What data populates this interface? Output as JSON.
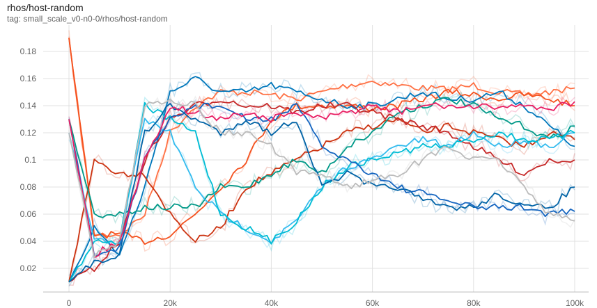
{
  "header": {
    "title": "rhos/host-random",
    "tag": "tag: small_scale_v0-n0-0/rhos/host-random"
  },
  "chart_data": {
    "type": "line",
    "title": "rhos/host-random",
    "xlabel": "",
    "ylabel": "",
    "xlim": [
      0,
      104000
    ],
    "ylim": [
      0,
      0.19
    ],
    "x_ticks": [
      0,
      20000,
      40000,
      60000,
      80000,
      100000
    ],
    "x_tick_labels": [
      "0",
      "20k",
      "40k",
      "60k",
      "80k",
      "100k"
    ],
    "y_ticks": [
      0.02,
      0.04,
      0.06,
      0.08,
      0.1,
      0.12,
      0.14,
      0.16,
      0.18
    ],
    "y_tick_labels": [
      "0.02",
      "0.04",
      "0.06",
      "0.08",
      "0.1",
      "0.12",
      "0.14",
      "0.16",
      "0.18"
    ],
    "grid": true,
    "legend": "none",
    "raw_series_opacity": 0.22,
    "x": [
      0,
      5000,
      10000,
      15000,
      20000,
      25000,
      30000,
      35000,
      40000,
      45000,
      50000,
      55000,
      60000,
      65000,
      70000,
      75000,
      80000,
      85000,
      90000,
      95000,
      100000
    ],
    "series": [
      {
        "color": "#ff7043",
        "values": [
          0.19,
          0.045,
          0.045,
          0.06,
          0.12,
          0.14,
          0.15,
          0.15,
          0.148,
          0.145,
          0.15,
          0.155,
          0.158,
          0.155,
          0.153,
          0.152,
          0.155,
          0.15,
          0.148,
          0.15,
          0.153
        ]
      },
      {
        "color": "#f4511e",
        "values": [
          0.19,
          0.045,
          0.045,
          0.04,
          0.045,
          0.06,
          0.08,
          0.1,
          0.13,
          0.14,
          0.14,
          0.14,
          0.138,
          0.14,
          0.145,
          0.15,
          0.148,
          0.145,
          0.148,
          0.145,
          0.14
        ]
      },
      {
        "color": "#0077bb",
        "values": [
          0.01,
          0.05,
          0.03,
          0.08,
          0.15,
          0.16,
          0.15,
          0.15,
          0.155,
          0.15,
          0.145,
          0.14,
          0.14,
          0.145,
          0.15,
          0.145,
          0.145,
          0.15,
          0.14,
          0.125,
          0.11
        ]
      },
      {
        "color": "#cc3311",
        "values": [
          0.01,
          0.1,
          0.09,
          0.09,
          0.06,
          0.04,
          0.05,
          0.08,
          0.09,
          0.1,
          0.11,
          0.12,
          0.125,
          0.13,
          0.12,
          0.125,
          0.12,
          0.115,
          0.11,
          0.12,
          0.115
        ]
      },
      {
        "color": "#c62828",
        "values": [
          0.01,
          0.02,
          0.04,
          0.1,
          0.13,
          0.14,
          0.145,
          0.14,
          0.14,
          0.135,
          0.14,
          0.14,
          0.135,
          0.13,
          0.125,
          0.12,
          0.11,
          0.1,
          0.09,
          0.1,
          0.1
        ]
      },
      {
        "color": "#009988",
        "values": [
          0.13,
          0.06,
          0.06,
          0.065,
          0.065,
          0.065,
          0.08,
          0.08,
          0.09,
          0.1,
          0.09,
          0.11,
          0.12,
          0.135,
          0.14,
          0.145,
          0.14,
          0.13,
          0.125,
          0.115,
          0.125
        ]
      },
      {
        "color": "#33bbee",
        "values": [
          0.12,
          0.04,
          0.04,
          0.13,
          0.12,
          0.08,
          0.06,
          0.05,
          0.04,
          0.055,
          0.08,
          0.095,
          0.1,
          0.11,
          0.115,
          0.11,
          0.12,
          0.11,
          0.115,
          0.11,
          0.12
        ]
      },
      {
        "color": "#00bcd4",
        "values": [
          0.01,
          0.04,
          0.04,
          0.14,
          0.13,
          0.12,
          0.06,
          0.05,
          0.04,
          0.055,
          0.08,
          0.095,
          0.1,
          0.105,
          0.11,
          0.11,
          0.115,
          0.12,
          0.115,
          0.115,
          0.12
        ]
      },
      {
        "color": "#0063a6",
        "values": [
          0.01,
          0.025,
          0.03,
          0.12,
          0.14,
          0.13,
          0.12,
          0.13,
          0.12,
          0.13,
          0.08,
          0.09,
          0.08,
          0.08,
          0.07,
          0.065,
          0.065,
          0.075,
          0.065,
          0.065,
          0.08
        ]
      },
      {
        "color": "#1565c0",
        "values": [
          0.13,
          0.03,
          0.035,
          0.1,
          0.13,
          0.14,
          0.14,
          0.13,
          0.13,
          0.14,
          0.11,
          0.1,
          0.09,
          0.08,
          0.075,
          0.07,
          0.065,
          0.065,
          0.065,
          0.06,
          0.062
        ]
      },
      {
        "color": "#e91e63",
        "values": [
          0.13,
          0.03,
          0.04,
          0.1,
          0.14,
          0.135,
          0.13,
          0.135,
          0.13,
          0.135,
          0.13,
          0.135,
          0.14,
          0.135,
          0.14,
          0.14,
          0.138,
          0.14,
          0.14,
          0.138,
          0.143
        ]
      },
      {
        "color": "#bbbbbb",
        "values": [
          0.12,
          0.03,
          0.04,
          0.14,
          0.145,
          0.14,
          0.12,
          0.12,
          0.11,
          0.09,
          0.09,
          0.08,
          0.085,
          0.09,
          0.1,
          0.11,
          0.1,
          0.1,
          0.08,
          0.06,
          0.055
        ]
      }
    ]
  }
}
